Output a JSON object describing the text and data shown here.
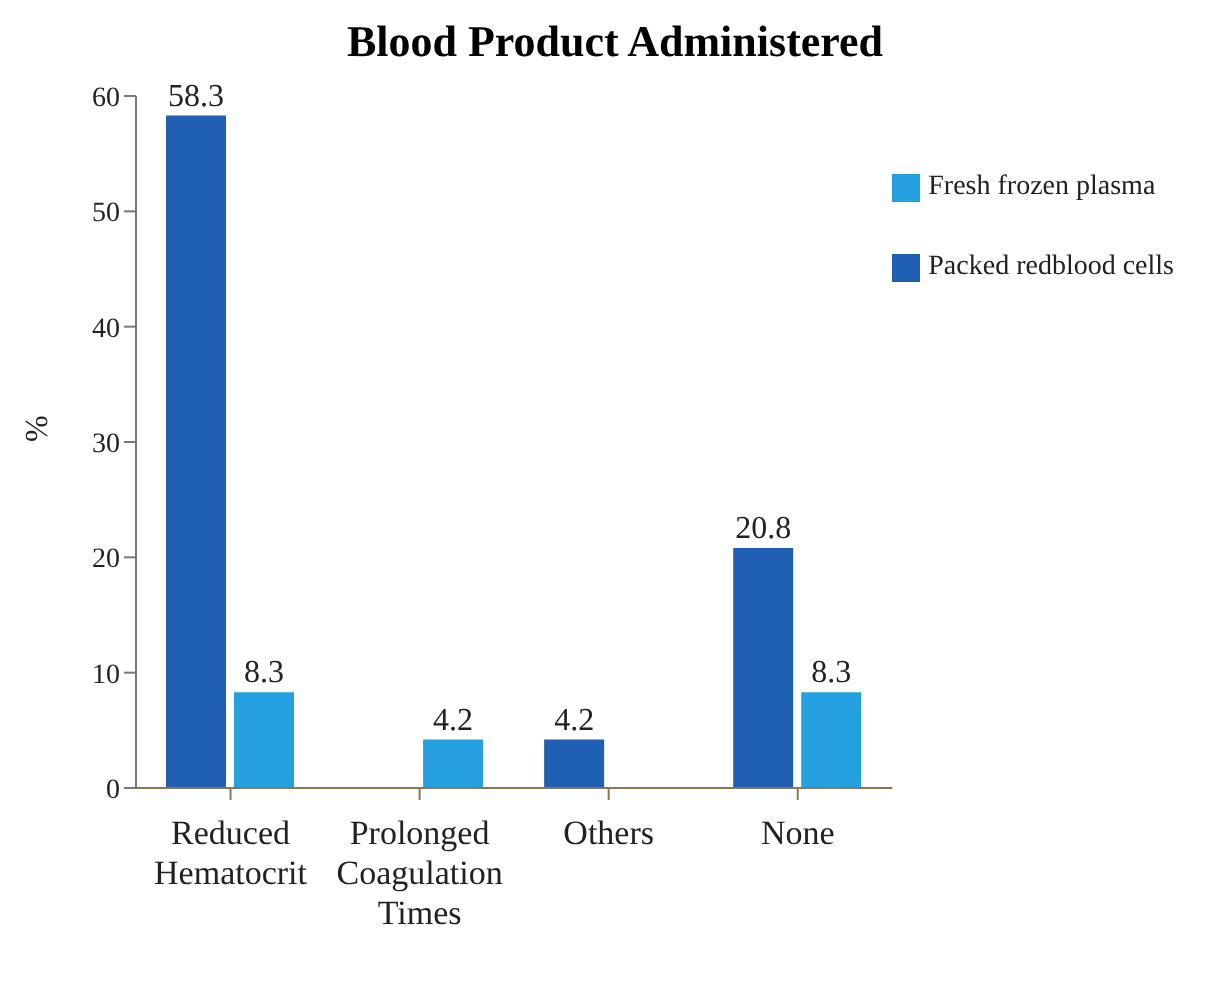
{
  "chart_data": {
    "type": "bar",
    "title": "Blood Product Administered",
    "ylabel": "%",
    "categories": [
      "Reduced Hematocrit",
      "Prolonged Coagulation Times",
      "Others",
      "None"
    ],
    "series": [
      {
        "name": "Packed redblood cells",
        "color": "#1f5fb4",
        "values": [
          58.3,
          null,
          4.2,
          20.8
        ]
      },
      {
        "name": "Fresh frozen plasma",
        "color": "#23a0df",
        "values": [
          8.3,
          4.2,
          null,
          8.3
        ]
      }
    ],
    "ylim": [
      0,
      60
    ],
    "yticks": [
      0,
      10,
      20,
      30,
      40,
      50,
      60
    ],
    "data_labels": true,
    "legend": "top right",
    "grid": false
  }
}
